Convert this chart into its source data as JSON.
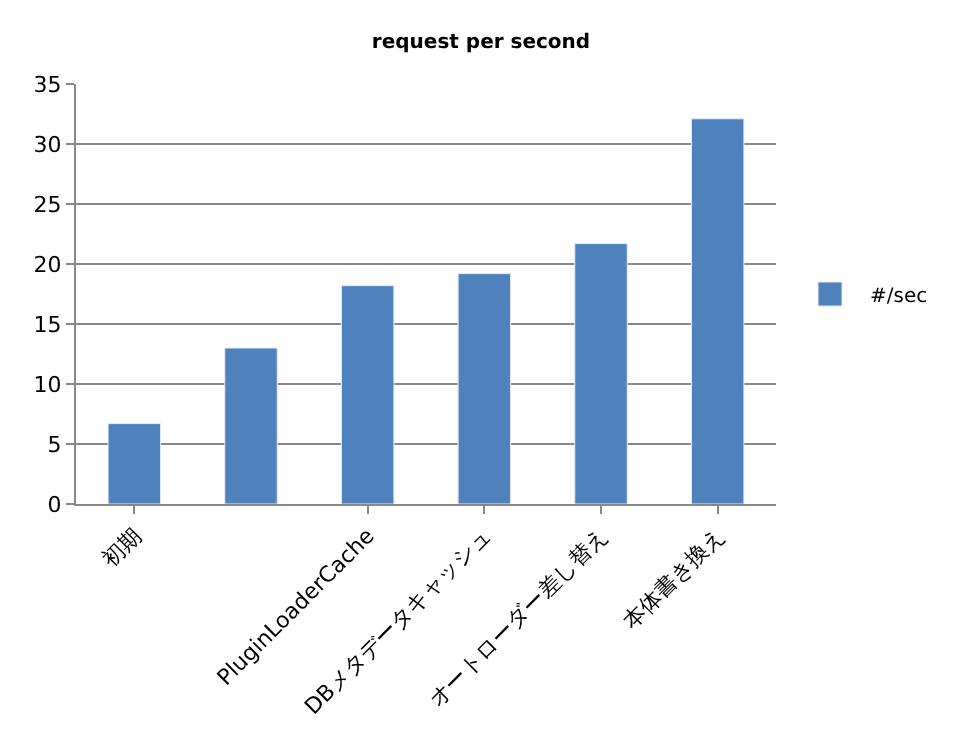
{
  "chart_data": {
    "type": "bar",
    "title": "request per second",
    "categories": [
      "初期",
      null,
      "PluginLoaderCache",
      "DBメタデータキャッシュ",
      "オートローダー差し替え",
      "本体書き換え"
    ],
    "series": [
      {
        "name": "#/sec",
        "color": "#4f81bd",
        "values": [
          6.7,
          13.0,
          18.2,
          19.2,
          21.7,
          32.1
        ]
      }
    ],
    "ylim": [
      0,
      35
    ],
    "yticks": [
      0,
      5,
      10,
      15,
      20,
      25,
      30,
      35
    ],
    "grid": "y",
    "legend": "right"
  }
}
